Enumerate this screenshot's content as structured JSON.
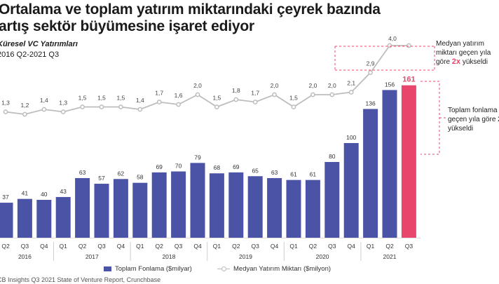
{
  "header": {
    "title_line1": "Ortalama ve toplam yatırım miktarındaki çeyrek bazında",
    "title_line2": "artış sektör büyümesine işaret ediyor",
    "subtitle": "Küresel VC Yatırımları",
    "period": "2016 Q2-2021 Q3"
  },
  "annotations": {
    "median_line1": "Medyan yatırım",
    "median_line2": "miktarı geçen yıla",
    "median_line3_pre": "göre ",
    "median_line3_hl": "2x",
    "median_line3_post": " yükseldi",
    "total_line1": "Toplam fonlama",
    "total_line2": "geçen yıla göre 2",
    "total_line3": "yükseldi"
  },
  "legend": {
    "bar_label": "Toplam Fonlama ($milyar)",
    "line_label": "Medyan Yatırım Miktarı ($milyon)"
  },
  "source": "CB Insights Q3 2021 State of Venture Report, Crunchbase",
  "colors": {
    "bar": "#4b53a6",
    "highlight": "#e8476b",
    "line": "#bdbdbd"
  },
  "chart_data": {
    "type": "bar",
    "categories": [
      "Q2",
      "Q3",
      "Q4",
      "Q1",
      "Q2",
      "Q3",
      "Q4",
      "Q1",
      "Q2",
      "Q3",
      "Q4",
      "Q1",
      "Q2",
      "Q3",
      "Q4",
      "Q1",
      "Q2",
      "Q3",
      "Q4",
      "Q1",
      "Q2",
      "Q3"
    ],
    "years": [
      {
        "label": "2016",
        "from": 0,
        "to": 2
      },
      {
        "label": "2017",
        "from": 3,
        "to": 6
      },
      {
        "label": "2018",
        "from": 7,
        "to": 10
      },
      {
        "label": "2019",
        "from": 11,
        "to": 14
      },
      {
        "label": "2020",
        "from": 15,
        "to": 18
      },
      {
        "label": "2021",
        "from": 19,
        "to": 21
      }
    ],
    "series": [
      {
        "name": "Toplam Fonlama ($milyar)",
        "type": "bar",
        "values": [
          37,
          41,
          40,
          43,
          63,
          57,
          62,
          58,
          69,
          70,
          79,
          68,
          69,
          65,
          63,
          61,
          61,
          80,
          100,
          136,
          156,
          161
        ]
      },
      {
        "name": "Medyan Yatırım Miktarı ($milyon)",
        "type": "line",
        "values": [
          1.3,
          1.2,
          1.4,
          1.3,
          1.5,
          1.5,
          1.5,
          1.4,
          1.7,
          1.6,
          2.0,
          1.5,
          1.8,
          1.7,
          2.0,
          1.5,
          2.0,
          2.0,
          2.1,
          2.9,
          4.0,
          4.0
        ]
      }
    ],
    "value_labels": [
      "37",
      "41",
      "40",
      "43",
      "63",
      "57",
      "62",
      "58",
      "69",
      "70",
      "79",
      "68",
      "69",
      "65",
      "63",
      "61",
      "61",
      "80",
      "100",
      "136",
      "156",
      "161"
    ],
    "line_labels": [
      "1,3",
      "1,2",
      "1,4",
      "1,3",
      "1,5",
      "1,5",
      "1,5",
      "1,4",
      "1,7",
      "1,6",
      "2,0",
      "1,5",
      "1,8",
      "1,7",
      "2,0",
      "1,5",
      "2,0",
      "2,0",
      "2,1",
      "2,9",
      "4,0",
      ""
    ],
    "highlight_index": 21,
    "legend_position": "bottom"
  }
}
